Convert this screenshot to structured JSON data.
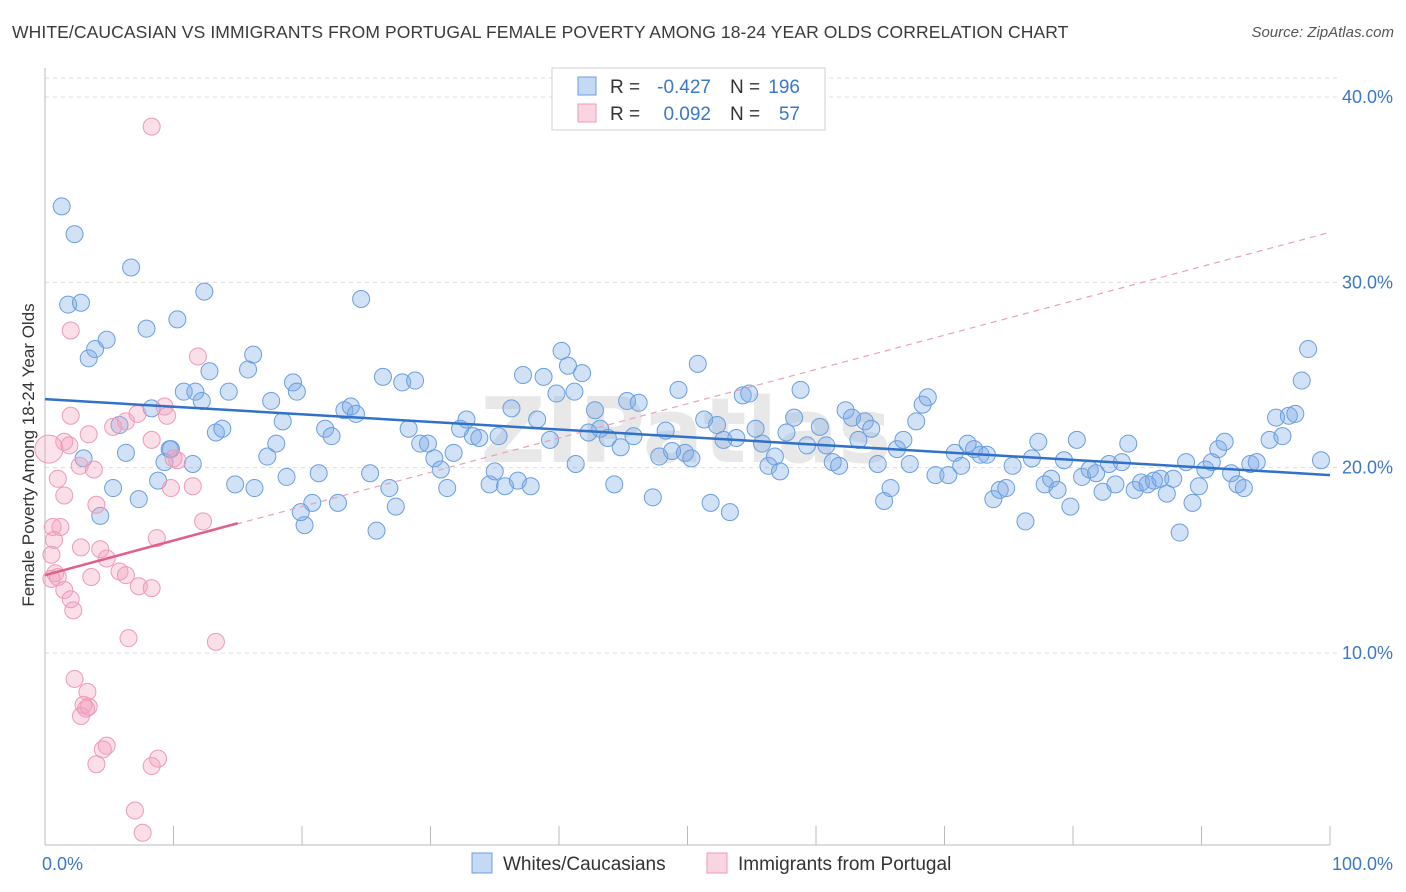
{
  "title": "WHITE/CAUCASIAN VS IMMIGRANTS FROM PORTUGAL FEMALE POVERTY AMONG 18-24 YEAR OLDS CORRELATION CHART",
  "source": "Source: ZipAtlas.com",
  "watermark": "ZIPatlas",
  "legend_top": {
    "rows": [
      {
        "r_label": "R =",
        "r_value": "-0.427",
        "n_label": "N =",
        "n_value": "196"
      },
      {
        "r_label": "R =",
        "r_value": "0.092",
        "n_label": "N =",
        "n_value": "57"
      }
    ]
  },
  "chart_data": {
    "type": "scatter",
    "title": "WHITE/CAUCASIAN VS IMMIGRANTS FROM PORTUGAL FEMALE POVERTY AMONG 18-24 YEAR OLDS CORRELATION CHART",
    "xlabel": "",
    "ylabel": "Female Poverty Among 18-24 Year Olds",
    "xlim": [
      0,
      100
    ],
    "ylim": [
      0,
      40
    ],
    "x_tick_labels": [
      "0.0%",
      "100.0%"
    ],
    "y_ticks": [
      10,
      20,
      30,
      40
    ],
    "y_tick_labels": [
      "10.0%",
      "20.0%",
      "30.0%",
      "40.0%"
    ],
    "grid": true,
    "legend_position": "bottom",
    "colors": {
      "blue": "#7aaae6",
      "blue_line": "#2f72c8",
      "pink": "#f2a0bc",
      "pink_line": "#e0608c",
      "text_blue": "#3a78c8"
    },
    "series": [
      {
        "name": "Whites/Caucasians",
        "R": -0.427,
        "N": 196,
        "trend": {
          "x": [
            0,
            100
          ],
          "y": [
            23.7,
            19.6
          ]
        },
        "points": [
          [
            1.3,
            34.1
          ],
          [
            2.3,
            32.6
          ],
          [
            1.8,
            28.8
          ],
          [
            2.8,
            28.9
          ],
          [
            3.4,
            25.9
          ],
          [
            3.9,
            26.4
          ],
          [
            4.8,
            26.9
          ],
          [
            6.7,
            30.8
          ],
          [
            7.9,
            27.5
          ],
          [
            10.3,
            28.0
          ],
          [
            12.4,
            29.5
          ],
          [
            8.3,
            23.2
          ],
          [
            5.8,
            22.3
          ],
          [
            6.3,
            20.8
          ],
          [
            5.3,
            18.9
          ],
          [
            4.3,
            17.4
          ],
          [
            7.3,
            18.3
          ],
          [
            9.3,
            20.3
          ],
          [
            9.8,
            21.0
          ],
          [
            10.8,
            24.1
          ],
          [
            11.7,
            24.1
          ],
          [
            12.2,
            23.6
          ],
          [
            12.8,
            25.2
          ],
          [
            13.3,
            21.9
          ],
          [
            13.8,
            22.1
          ],
          [
            14.3,
            24.1
          ],
          [
            14.8,
            19.1
          ],
          [
            15.8,
            25.3
          ],
          [
            16.2,
            26.1
          ],
          [
            16.3,
            18.9
          ],
          [
            17.3,
            20.6
          ],
          [
            17.6,
            23.6
          ],
          [
            18.0,
            21.3
          ],
          [
            18.5,
            22.5
          ],
          [
            18.8,
            19.5
          ],
          [
            19.3,
            24.6
          ],
          [
            19.6,
            24.1
          ],
          [
            20.8,
            18.1
          ],
          [
            20.2,
            16.9
          ],
          [
            21.3,
            19.7
          ],
          [
            21.8,
            22.1
          ],
          [
            22.3,
            21.7
          ],
          [
            22.8,
            18.1
          ],
          [
            23.3,
            23.1
          ],
          [
            23.8,
            23.3
          ],
          [
            24.2,
            22.9
          ],
          [
            24.6,
            29.1
          ],
          [
            25.3,
            19.7
          ],
          [
            25.8,
            16.6
          ],
          [
            26.3,
            24.9
          ],
          [
            26.8,
            18.9
          ],
          [
            27.3,
            17.9
          ],
          [
            27.8,
            24.6
          ],
          [
            28.3,
            22.1
          ],
          [
            28.8,
            24.7
          ],
          [
            29.2,
            21.3
          ],
          [
            29.8,
            21.3
          ],
          [
            30.3,
            20.5
          ],
          [
            30.8,
            19.9
          ],
          [
            31.3,
            18.9
          ],
          [
            31.8,
            20.8
          ],
          [
            32.3,
            22.1
          ],
          [
            32.8,
            22.6
          ],
          [
            33.3,
            21.7
          ],
          [
            33.8,
            21.6
          ],
          [
            34.6,
            19.1
          ],
          [
            35.3,
            21.7
          ],
          [
            35.8,
            19.0
          ],
          [
            36.3,
            23.2
          ],
          [
            36.8,
            19.3
          ],
          [
            37.2,
            25.0
          ],
          [
            37.8,
            19.0
          ],
          [
            38.3,
            22.6
          ],
          [
            38.8,
            24.9
          ],
          [
            39.3,
            21.5
          ],
          [
            39.8,
            24.0
          ],
          [
            40.2,
            26.3
          ],
          [
            40.7,
            25.5
          ],
          [
            41.2,
            24.1
          ],
          [
            41.8,
            25.1
          ],
          [
            42.3,
            21.9
          ],
          [
            42.8,
            23.1
          ],
          [
            43.2,
            22.1
          ],
          [
            43.8,
            21.6
          ],
          [
            44.3,
            19.1
          ],
          [
            44.8,
            21.1
          ],
          [
            45.3,
            23.6
          ],
          [
            45.8,
            21.7
          ],
          [
            46.2,
            23.5
          ],
          [
            47.3,
            18.4
          ],
          [
            47.8,
            20.6
          ],
          [
            48.3,
            22.0
          ],
          [
            48.8,
            20.9
          ],
          [
            49.3,
            24.2
          ],
          [
            49.8,
            20.8
          ],
          [
            50.3,
            20.5
          ],
          [
            50.8,
            25.6
          ],
          [
            51.3,
            22.6
          ],
          [
            51.8,
            18.1
          ],
          [
            52.3,
            22.3
          ],
          [
            52.8,
            21.5
          ],
          [
            53.3,
            17.6
          ],
          [
            53.8,
            21.6
          ],
          [
            54.3,
            23.9
          ],
          [
            54.8,
            24.0
          ],
          [
            55.3,
            22.1
          ],
          [
            55.8,
            21.3
          ],
          [
            56.3,
            20.1
          ],
          [
            56.8,
            20.6
          ],
          [
            57.2,
            19.8
          ],
          [
            57.7,
            21.9
          ],
          [
            58.3,
            22.7
          ],
          [
            58.8,
            24.2
          ],
          [
            59.3,
            21.2
          ],
          [
            60.3,
            22.2
          ],
          [
            60.8,
            21.2
          ],
          [
            61.3,
            20.3
          ],
          [
            61.8,
            20.1
          ],
          [
            62.3,
            23.1
          ],
          [
            62.8,
            22.7
          ],
          [
            63.3,
            21.5
          ],
          [
            63.8,
            22.5
          ],
          [
            64.3,
            22.1
          ],
          [
            64.8,
            20.2
          ],
          [
            65.3,
            18.2
          ],
          [
            65.8,
            18.9
          ],
          [
            66.3,
            21.0
          ],
          [
            66.8,
            21.5
          ],
          [
            67.3,
            20.2
          ],
          [
            67.8,
            22.5
          ],
          [
            68.3,
            23.4
          ],
          [
            68.7,
            23.8
          ],
          [
            69.3,
            19.6
          ],
          [
            70.3,
            19.6
          ],
          [
            70.8,
            20.8
          ],
          [
            71.3,
            20.1
          ],
          [
            71.8,
            21.3
          ],
          [
            72.3,
            21.0
          ],
          [
            72.8,
            20.7
          ],
          [
            73.3,
            20.7
          ],
          [
            73.8,
            18.3
          ],
          [
            74.3,
            18.8
          ],
          [
            74.8,
            18.9
          ],
          [
            75.3,
            20.1
          ],
          [
            76.3,
            17.1
          ],
          [
            76.8,
            20.5
          ],
          [
            77.3,
            21.4
          ],
          [
            77.8,
            19.1
          ],
          [
            78.3,
            19.4
          ],
          [
            78.8,
            18.8
          ],
          [
            79.3,
            20.4
          ],
          [
            79.8,
            17.9
          ],
          [
            80.3,
            21.5
          ],
          [
            80.7,
            19.5
          ],
          [
            81.3,
            19.9
          ],
          [
            81.8,
            19.7
          ],
          [
            82.3,
            18.7
          ],
          [
            82.8,
            20.2
          ],
          [
            83.3,
            19.1
          ],
          [
            83.8,
            20.3
          ],
          [
            84.3,
            21.3
          ],
          [
            84.8,
            18.8
          ],
          [
            85.3,
            19.2
          ],
          [
            85.8,
            19.1
          ],
          [
            86.3,
            19.3
          ],
          [
            86.8,
            19.4
          ],
          [
            87.3,
            18.6
          ],
          [
            87.8,
            19.4
          ],
          [
            88.3,
            16.5
          ],
          [
            88.8,
            20.3
          ],
          [
            89.3,
            18.1
          ],
          [
            89.8,
            19.0
          ],
          [
            90.3,
            19.9
          ],
          [
            90.8,
            20.3
          ],
          [
            91.3,
            21.0
          ],
          [
            91.8,
            21.4
          ],
          [
            92.3,
            19.7
          ],
          [
            92.8,
            19.1
          ],
          [
            93.3,
            18.9
          ],
          [
            93.8,
            20.2
          ],
          [
            94.3,
            20.3
          ],
          [
            95.3,
            21.5
          ],
          [
            95.8,
            22.7
          ],
          [
            96.3,
            21.7
          ],
          [
            96.8,
            22.8
          ],
          [
            97.3,
            22.9
          ],
          [
            97.8,
            24.7
          ],
          [
            98.3,
            26.4
          ],
          [
            99.3,
            20.4
          ],
          [
            9.7,
            21.0
          ],
          [
            11.5,
            20.2
          ],
          [
            8.8,
            19.3
          ],
          [
            3.0,
            20.5
          ],
          [
            19.9,
            17.6
          ],
          [
            35.0,
            19.8
          ],
          [
            41.3,
            20.2
          ]
        ]
      },
      {
        "name": "Immigrants from Portugal",
        "R": 0.092,
        "N": 57,
        "trend": {
          "x": [
            0,
            15
          ],
          "y": [
            14.2,
            17.0
          ]
        },
        "trend_extended": {
          "x": [
            0,
            100
          ],
          "y": [
            14.2,
            32.7
          ]
        },
        "points": [
          [
            8.3,
            38.4
          ],
          [
            2.0,
            27.4
          ],
          [
            11.9,
            26.0
          ],
          [
            2.0,
            22.8
          ],
          [
            1.5,
            21.4
          ],
          [
            1.9,
            21.2
          ],
          [
            2.7,
            20.1
          ],
          [
            3.4,
            21.8
          ],
          [
            3.8,
            19.9
          ],
          [
            4.0,
            18.0
          ],
          [
            1.0,
            19.4
          ],
          [
            1.5,
            18.5
          ],
          [
            5.3,
            22.2
          ],
          [
            6.3,
            22.5
          ],
          [
            7.2,
            22.9
          ],
          [
            8.3,
            21.5
          ],
          [
            9.3,
            23.3
          ],
          [
            9.5,
            22.8
          ],
          [
            9.8,
            18.9
          ],
          [
            10.0,
            20.5
          ],
          [
            10.3,
            20.4
          ],
          [
            11.5,
            19.0
          ],
          [
            12.3,
            17.1
          ],
          [
            0.6,
            16.8
          ],
          [
            1.2,
            16.8
          ],
          [
            0.7,
            16.1
          ],
          [
            0.5,
            15.3
          ],
          [
            0.8,
            14.3
          ],
          [
            0.5,
            14.0
          ],
          [
            1.0,
            14.1
          ],
          [
            1.5,
            13.4
          ],
          [
            2.0,
            12.9
          ],
          [
            2.2,
            12.3
          ],
          [
            2.8,
            15.7
          ],
          [
            3.6,
            14.1
          ],
          [
            4.3,
            15.6
          ],
          [
            4.8,
            15.1
          ],
          [
            5.8,
            14.4
          ],
          [
            6.3,
            14.2
          ],
          [
            7.3,
            13.6
          ],
          [
            8.3,
            13.5
          ],
          [
            8.7,
            16.2
          ],
          [
            6.5,
            10.8
          ],
          [
            13.3,
            10.6
          ],
          [
            2.3,
            8.6
          ],
          [
            3.3,
            7.9
          ],
          [
            3.0,
            7.2
          ],
          [
            3.4,
            7.1
          ],
          [
            2.8,
            6.6
          ],
          [
            3.2,
            7.0
          ],
          [
            4.5,
            4.8
          ],
          [
            4.8,
            5.0
          ],
          [
            4.0,
            4.0
          ],
          [
            8.3,
            3.9
          ],
          [
            8.8,
            4.3
          ],
          [
            7.0,
            1.5
          ],
          [
            7.6,
            0.3
          ]
        ]
      }
    ]
  }
}
